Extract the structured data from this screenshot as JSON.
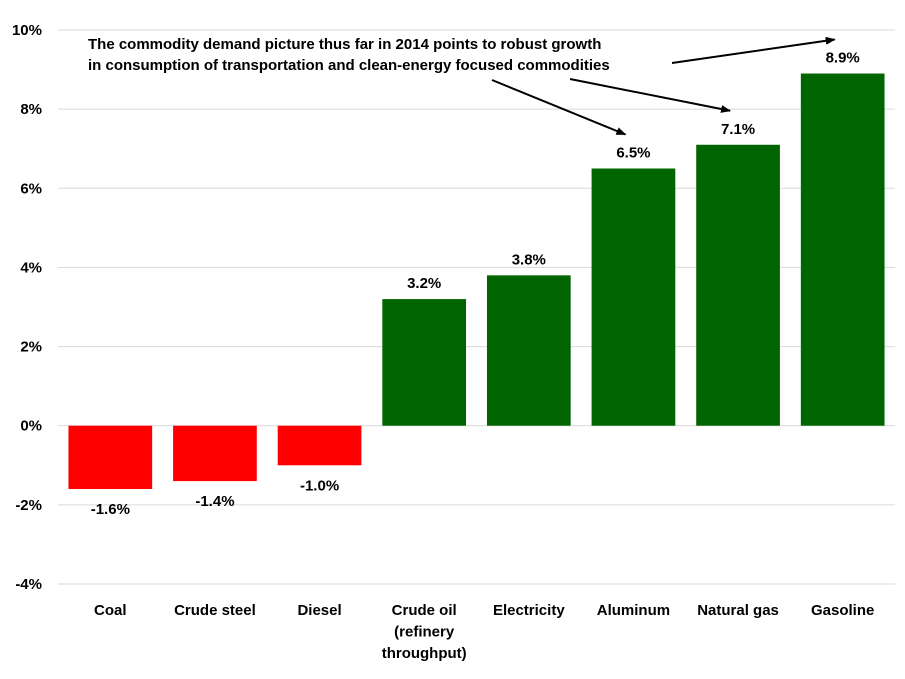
{
  "chart_data": {
    "type": "bar",
    "categories": [
      [
        "Coal"
      ],
      [
        "Crude steel"
      ],
      [
        "Diesel"
      ],
      [
        "Crude oil",
        "(refinery",
        "throughput)"
      ],
      [
        "Electricity"
      ],
      [
        "Aluminum"
      ],
      [
        "Natural gas"
      ],
      [
        "Gasoline"
      ]
    ],
    "values": [
      -1.6,
      -1.4,
      -1.0,
      3.2,
      3.8,
      6.5,
      7.1,
      8.9
    ],
    "data_labels": [
      "-1.6%",
      "-1.4%",
      "-1.0%",
      "3.2%",
      "3.8%",
      "6.5%",
      "7.1%",
      "8.9%"
    ],
    "ylim": [
      -4,
      10
    ],
    "yticks": [
      -4,
      -2,
      0,
      2,
      4,
      6,
      8,
      10
    ],
    "ytick_labels": [
      "-4%",
      "-2%",
      "0%",
      "2%",
      "4%",
      "6%",
      "8%",
      "10%"
    ],
    "grid": true,
    "colors": {
      "negative": "#ff0000",
      "positive": "#006400",
      "grid": "#d9d9d9"
    },
    "annotation": {
      "lines": [
        "The commodity demand picture thus far in 2014 points to robust growth",
        "in consumption of transportation and clean-energy focused commodities"
      ],
      "arrow_targets": [
        "Aluminum",
        "Natural gas",
        "Gasoline"
      ]
    }
  }
}
